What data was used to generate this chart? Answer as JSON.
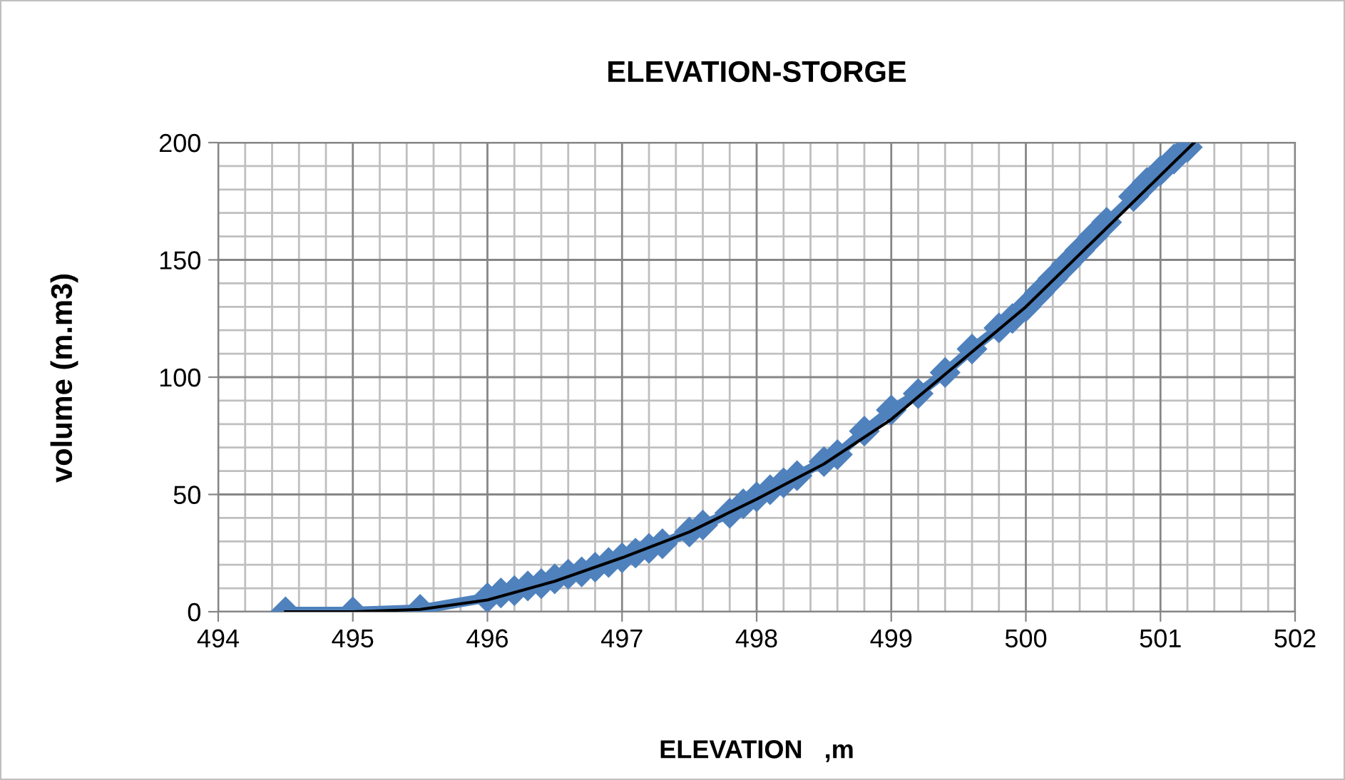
{
  "chart_data": {
    "type": "line",
    "title": "ELEVATION-STORGE",
    "xlabel": "ELEVATION   ,m",
    "ylabel": "volume (m.m3)",
    "xlim": [
      494,
      502
    ],
    "xticks": [
      494,
      495,
      496,
      497,
      498,
      499,
      500,
      501,
      502
    ],
    "ylim": [
      0,
      200
    ],
    "yticks": [
      0,
      50,
      100,
      150,
      200
    ],
    "grid": true,
    "legend": false,
    "series": [
      {
        "color": "#4f81bd",
        "marker": "diamond",
        "line_style": "solid",
        "x": [
          494.5,
          495,
          495.5,
          496,
          496.1,
          496.2,
          496.3,
          496.4,
          496.5,
          496.6,
          496.7,
          496.8,
          496.9,
          497,
          497.1,
          497.2,
          497.3,
          497.5,
          497.6,
          497.8,
          497.9,
          498,
          498.1,
          498.2,
          498.3,
          498.5,
          498.6,
          498.8,
          499,
          499.2,
          499.4,
          499.6,
          499.8,
          499.9,
          500,
          500.1,
          500.2,
          500.3,
          500.4,
          500.5,
          500.6,
          500.8,
          500.9,
          501,
          501.1,
          501.2
        ],
        "values": [
          0,
          0,
          1,
          6,
          8,
          9,
          11,
          12,
          14,
          16,
          17,
          19,
          21,
          23,
          25,
          27,
          29,
          34,
          37,
          42,
          46,
          49,
          52,
          55,
          58,
          64,
          67,
          77,
          86,
          93,
          102,
          112,
          121,
          125,
          130,
          136,
          142,
          148,
          154,
          160,
          166,
          177,
          183,
          188,
          193,
          198
        ]
      },
      {
        "color": "#000000",
        "marker": "none",
        "line_style": "solid",
        "x": [
          494.5,
          495,
          495.5,
          496,
          496.5,
          497,
          497.5,
          498,
          498.5,
          499,
          499.5,
          500,
          500.5,
          501,
          501.25
        ],
        "values": [
          0,
          0,
          1,
          5,
          13,
          23,
          34,
          48,
          63,
          82,
          106,
          130,
          158,
          186,
          200
        ]
      }
    ]
  }
}
